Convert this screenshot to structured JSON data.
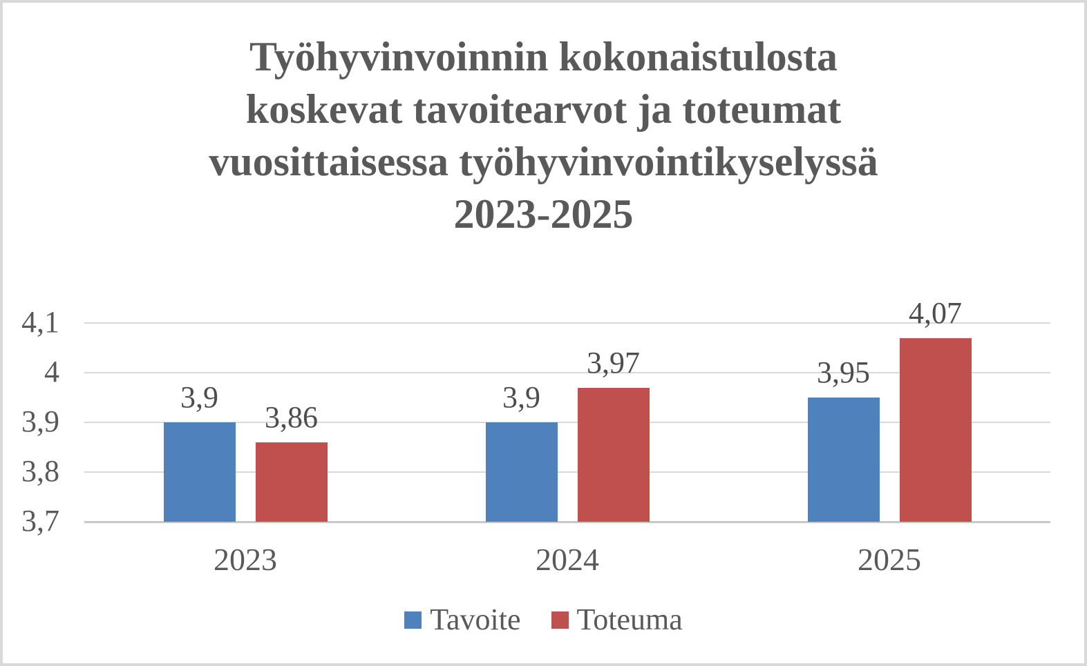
{
  "chart_data": {
    "type": "bar",
    "title": "Työhyvinvoinnin kokonaistulosta koskevat tavoitearvot ja toteumat vuosittaisessa työhyvinvointikyselyssä 2023-2025",
    "title_lines": [
      "Työhyvinvoinnin kokonaistulosta",
      "koskevat tavoitearvot ja toteumat",
      "vuosittaisessa työhyvinvointikyselyssä",
      "2023-2025"
    ],
    "categories": [
      "2023",
      "2024",
      "2025"
    ],
    "series": [
      {
        "name": "Tavoite",
        "color": "#4F81BD",
        "values": [
          3.9,
          3.9,
          3.95
        ],
        "labels": [
          "3,9",
          "3,9",
          "3,95"
        ]
      },
      {
        "name": "Toteuma",
        "color": "#C0504D",
        "values": [
          3.86,
          3.97,
          4.07
        ],
        "labels": [
          "3,86",
          "3,97",
          "4,07"
        ]
      }
    ],
    "yticks": [
      {
        "label": "4,1",
        "value": 4.1
      },
      {
        "label": "4",
        "value": 4.0
      },
      {
        "label": "3,9",
        "value": 3.9
      },
      {
        "label": "3,8",
        "value": 3.8
      },
      {
        "label": "3,7",
        "value": 3.7
      }
    ],
    "ylim": [
      3.7,
      4.1
    ],
    "xlabel": "",
    "ylabel": "",
    "grid": true,
    "legend_position": "bottom",
    "decimal_separator": ","
  },
  "colors": {
    "title_text": "#595959",
    "axis_text": "#595959",
    "data_label_text": "#4d4d4d",
    "gridline": "#d9d9d9",
    "baseline": "#c8c8c8",
    "frame_border": "#d9d9d9",
    "background": "#ffffff"
  }
}
